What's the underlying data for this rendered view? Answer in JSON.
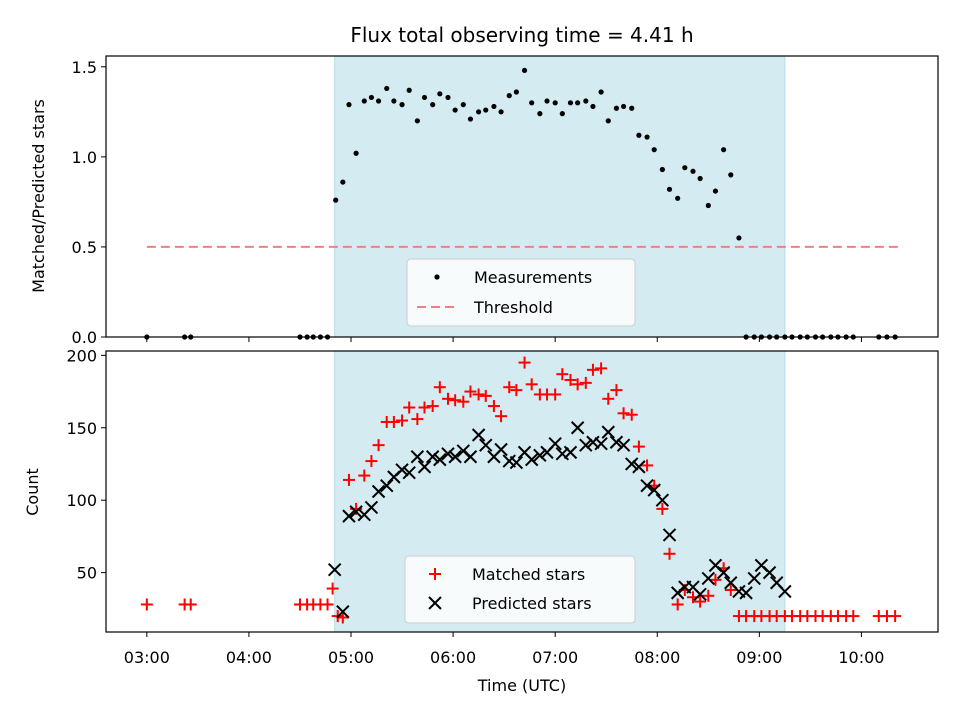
{
  "chart_data": [
    {
      "type": "scatter",
      "title": "Flux total observing time = 4.41 h",
      "ylabel": "Matched/Predicted stars",
      "ylim": [
        0,
        1.56
      ],
      "yticks": [
        0.0,
        0.5,
        1.0,
        1.5
      ],
      "ytick_labels": [
        "0.0",
        "0.5",
        "1.0",
        "1.5"
      ],
      "xlim": [
        2.6,
        10.75
      ],
      "shaded_span": [
        4.84,
        9.25
      ],
      "shade_color": "#d4ebf1",
      "series": [
        {
          "name": "Measurements",
          "marker": "dot",
          "color": "#000000",
          "x": [
            3.0,
            3.37,
            3.43,
            4.5,
            4.57,
            4.63,
            4.7,
            4.77,
            4.85,
            4.92,
            4.98,
            5.05,
            5.13,
            5.2,
            5.27,
            5.35,
            5.42,
            5.5,
            5.57,
            5.65,
            5.72,
            5.8,
            5.87,
            5.95,
            6.02,
            6.1,
            6.17,
            6.25,
            6.32,
            6.4,
            6.47,
            6.55,
            6.62,
            6.7,
            6.77,
            6.85,
            6.92,
            7.0,
            7.07,
            7.15,
            7.22,
            7.3,
            7.37,
            7.45,
            7.52,
            7.6,
            7.67,
            7.75,
            7.82,
            7.9,
            7.97,
            8.05,
            8.12,
            8.2,
            8.27,
            8.35,
            8.42,
            8.5,
            8.57,
            8.65,
            8.72,
            8.8,
            8.87,
            8.95,
            9.02,
            9.1,
            9.17,
            9.25,
            9.32,
            9.4,
            9.47,
            9.55,
            9.62,
            9.7,
            9.77,
            9.85,
            9.92,
            10.17,
            10.25,
            10.33
          ],
          "y": [
            0,
            0,
            0,
            0,
            0,
            0,
            0,
            0,
            0.76,
            0.86,
            1.29,
            1.02,
            1.31,
            1.33,
            1.31,
            1.38,
            1.31,
            1.29,
            1.37,
            1.2,
            1.33,
            1.29,
            1.35,
            1.33,
            1.26,
            1.29,
            1.21,
            1.25,
            1.26,
            1.28,
            1.25,
            1.34,
            1.36,
            1.48,
            1.3,
            1.24,
            1.31,
            1.3,
            1.24,
            1.3,
            1.3,
            1.31,
            1.28,
            1.36,
            1.2,
            1.27,
            1.28,
            1.27,
            1.12,
            1.11,
            1.04,
            0.93,
            0.82,
            0.77,
            0.94,
            0.92,
            0.88,
            0.73,
            0.81,
            1.04,
            0.9,
            0.55,
            0,
            0,
            0,
            0,
            0,
            0,
            0,
            0,
            0,
            0,
            0,
            0,
            0,
            0,
            0,
            0,
            0,
            0
          ]
        },
        {
          "name": "Threshold",
          "marker": "dashed-line",
          "color": "#f08080",
          "x": [
            3.0,
            10.4
          ],
          "y": [
            0.5,
            0.5
          ]
        }
      ],
      "legend_position": "lower-center"
    },
    {
      "type": "scatter",
      "xlabel": "Time (UTC)",
      "ylabel": "Count",
      "ylim": [
        9,
        203
      ],
      "yticks": [
        50,
        100,
        150,
        200
      ],
      "ytick_labels": [
        "50",
        "100",
        "150",
        "200"
      ],
      "xlim": [
        2.6,
        10.75
      ],
      "xticks": [
        3,
        4,
        5,
        6,
        7,
        8,
        9,
        10
      ],
      "xtick_labels": [
        "03:00",
        "04:00",
        "05:00",
        "06:00",
        "07:00",
        "08:00",
        "09:00",
        "10:00"
      ],
      "shaded_span": [
        4.84,
        9.25
      ],
      "series": [
        {
          "name": "Matched stars",
          "marker": "plus",
          "color": "#ff0000",
          "x": [
            3.0,
            3.37,
            3.43,
            4.5,
            4.57,
            4.63,
            4.7,
            4.77,
            4.82,
            4.87,
            4.92,
            4.98,
            5.05,
            5.13,
            5.2,
            5.27,
            5.35,
            5.42,
            5.5,
            5.57,
            5.65,
            5.72,
            5.8,
            5.87,
            5.95,
            6.02,
            6.1,
            6.17,
            6.25,
            6.32,
            6.4,
            6.47,
            6.55,
            6.62,
            6.7,
            6.77,
            6.85,
            6.92,
            7.0,
            7.07,
            7.15,
            7.22,
            7.3,
            7.37,
            7.45,
            7.52,
            7.6,
            7.67,
            7.75,
            7.82,
            7.9,
            7.97,
            8.05,
            8.12,
            8.2,
            8.27,
            8.35,
            8.42,
            8.5,
            8.57,
            8.65,
            8.72,
            8.8,
            8.87,
            8.95,
            9.02,
            9.1,
            9.17,
            9.25,
            9.32,
            9.4,
            9.47,
            9.55,
            9.62,
            9.7,
            9.77,
            9.85,
            9.92,
            10.17,
            10.25,
            10.33
          ],
          "y": [
            28,
            28,
            28,
            28,
            28,
            28,
            28,
            28,
            39,
            20,
            19,
            114,
            94,
            117,
            127,
            138,
            154,
            154,
            155,
            164,
            156,
            164,
            165,
            178,
            170,
            169,
            168,
            175,
            173,
            172,
            165,
            158,
            178,
            176,
            195,
            180,
            173,
            173,
            173,
            187,
            183,
            180,
            181,
            190,
            191,
            170,
            176,
            160,
            159,
            137,
            124,
            110,
            94,
            63,
            28,
            38,
            33,
            30,
            34,
            45,
            53,
            38,
            20,
            20,
            20,
            20,
            20,
            20,
            20,
            20,
            20,
            20,
            20,
            20,
            20,
            20,
            20,
            20,
            20,
            20,
            20
          ]
        },
        {
          "name": "Predicted stars",
          "marker": "x",
          "color": "#000000",
          "x": [
            4.84,
            4.92,
            4.98,
            5.05,
            5.13,
            5.2,
            5.27,
            5.35,
            5.42,
            5.5,
            5.57,
            5.65,
            5.72,
            5.8,
            5.87,
            5.95,
            6.02,
            6.1,
            6.17,
            6.25,
            6.32,
            6.4,
            6.47,
            6.55,
            6.62,
            6.7,
            6.77,
            6.85,
            6.92,
            7.0,
            7.07,
            7.15,
            7.22,
            7.3,
            7.37,
            7.45,
            7.52,
            7.6,
            7.67,
            7.75,
            7.82,
            7.9,
            7.97,
            8.05,
            8.12,
            8.2,
            8.27,
            8.35,
            8.42,
            8.5,
            8.57,
            8.65,
            8.72,
            8.8,
            8.87,
            8.95,
            9.02,
            9.1,
            9.17,
            9.25
          ],
          "y": [
            52,
            23,
            89,
            92,
            90,
            95,
            106,
            110,
            116,
            121,
            119,
            130,
            123,
            130,
            128,
            132,
            130,
            134,
            130,
            145,
            138,
            130,
            135,
            127,
            126,
            133,
            128,
            131,
            133,
            139,
            132,
            133,
            150,
            138,
            140,
            139,
            147,
            140,
            138,
            125,
            123,
            110,
            107,
            100,
            76,
            36,
            40,
            40,
            35,
            46,
            55,
            50,
            43,
            37,
            36,
            46,
            55,
            50,
            43,
            37
          ]
        }
      ],
      "legend_position": "lower-center"
    }
  ]
}
